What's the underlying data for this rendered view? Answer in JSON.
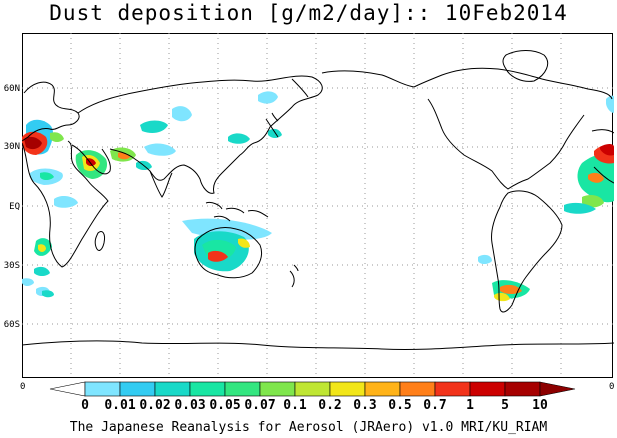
{
  "title": "Dust deposition [g/m2/day]:: 10Feb2014",
  "footer": "The Japanese Reanalysis for Aerosol (JRAero) v1.0 MRI/KU_RIAM",
  "lat_ticks": [
    "60N",
    "30N",
    "EQ",
    "30S",
    "60S"
  ],
  "lon_labels": {
    "left": "0",
    "right": "0"
  },
  "colorbar": {
    "labels": [
      "0",
      "0.01",
      "0.02",
      "0.03",
      "0.05",
      "0.07",
      "0.1",
      "0.2",
      "0.3",
      "0.5",
      "0.7",
      "1",
      "5",
      "10"
    ],
    "colors": [
      "#ffffff",
      "#7fe5ff",
      "#33ccf2",
      "#19d9c8",
      "#19e6a3",
      "#33e680",
      "#7fe64c",
      "#bfe633",
      "#f2e619",
      "#ffb319",
      "#ff7f19",
      "#f2331a",
      "#cc0000",
      "#a60000",
      "#8c0000"
    ]
  },
  "map": {
    "projection": "cylindrical equidistant, centered at 180",
    "grid": "dotted lat/lon lines every 30 degrees"
  }
}
